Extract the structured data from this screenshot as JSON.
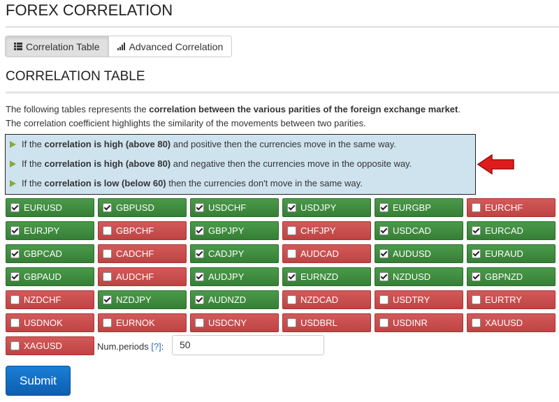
{
  "header": {
    "title": "FOREX CORRELATION"
  },
  "tabs": [
    "Correlation Table",
    "Advanced Correlation"
  ],
  "section": {
    "title": "CORRELATION TABLE"
  },
  "intro": {
    "line1": {
      "pre": "The following tables represents the ",
      "bold": "correlation between the various parities of the foreign exchange market",
      "post": "."
    },
    "line2": "The correlation coefficient highlights the similarity of the movements between two parities."
  },
  "info": [
    {
      "pre": "If the ",
      "bold": "correlation is high (above 80)",
      "post": " and positive then the currencies move in the same way."
    },
    {
      "pre": "If the ",
      "bold": "correlation is high (above 80)",
      "post": " and negative then the currencies move in the opposite way."
    },
    {
      "pre": "If the ",
      "bold": "correlation is low (below 60)",
      "post": " then the currencies don't move in the same way."
    }
  ],
  "pairs": [
    {
      "label": "EURUSD",
      "checked": true
    },
    {
      "label": "GBPUSD",
      "checked": true
    },
    {
      "label": "USDCHF",
      "checked": true
    },
    {
      "label": "USDJPY",
      "checked": true
    },
    {
      "label": "EURGBP",
      "checked": true
    },
    {
      "label": "EURCHF",
      "checked": false
    },
    {
      "label": "EURJPY",
      "checked": true
    },
    {
      "label": "GBPCHF",
      "checked": false
    },
    {
      "label": "GBPJPY",
      "checked": true
    },
    {
      "label": "CHFJPY",
      "checked": false
    },
    {
      "label": "USDCAD",
      "checked": true
    },
    {
      "label": "EURCAD",
      "checked": true
    },
    {
      "label": "GBPCAD",
      "checked": true
    },
    {
      "label": "CADCHF",
      "checked": false
    },
    {
      "label": "CADJPY",
      "checked": true
    },
    {
      "label": "AUDCAD",
      "checked": false
    },
    {
      "label": "AUDUSD",
      "checked": true
    },
    {
      "label": "EURAUD",
      "checked": true
    },
    {
      "label": "GBPAUD",
      "checked": true
    },
    {
      "label": "AUDCHF",
      "checked": false
    },
    {
      "label": "AUDJPY",
      "checked": true
    },
    {
      "label": "EURNZD",
      "checked": true
    },
    {
      "label": "NZDUSD",
      "checked": true
    },
    {
      "label": "GBPNZD",
      "checked": true
    },
    {
      "label": "NZDCHF",
      "checked": false
    },
    {
      "label": "NZDJPY",
      "checked": true
    },
    {
      "label": "AUDNZD",
      "checked": true
    },
    {
      "label": "NZDCAD",
      "checked": false
    },
    {
      "label": "USDTRY",
      "checked": false
    },
    {
      "label": "EURTRY",
      "checked": false
    },
    {
      "label": "USDNOK",
      "checked": false
    },
    {
      "label": "EURNOK",
      "checked": false
    },
    {
      "label": "USDCNY",
      "checked": false
    },
    {
      "label": "USDBRL",
      "checked": false
    },
    {
      "label": "USDINR",
      "checked": false
    },
    {
      "label": "XAUUSD",
      "checked": false
    },
    {
      "label": "XAGUSD",
      "checked": false
    }
  ],
  "periods": {
    "label": "Num.periods",
    "help": "[?]",
    "colon": ":",
    "value": "50"
  },
  "submit": "Submit"
}
